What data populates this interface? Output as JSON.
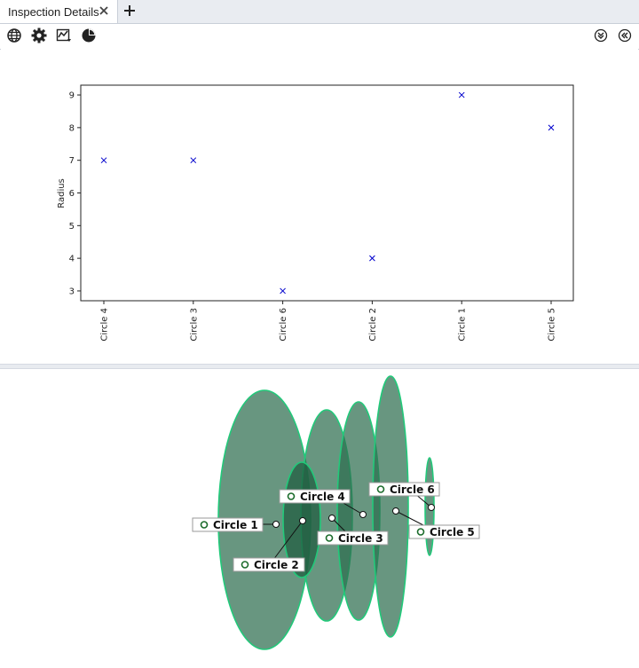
{
  "tab": {
    "title": "Inspection Details"
  },
  "toolbar": {
    "left_icons": [
      "globe-icon",
      "gear-icon",
      "line-chart-icon",
      "pie-chart-icon"
    ],
    "right_icons": [
      "collapse-down-icon",
      "collapse-left-icon"
    ]
  },
  "chart_data": {
    "type": "scatter",
    "categories": [
      "Circle 4",
      "Circle 3",
      "Circle 6",
      "Circle 2",
      "Circle 1",
      "Circle 5"
    ],
    "values": [
      7,
      7,
      3,
      4,
      9,
      8
    ],
    "ylabel": "Radius",
    "ylim": [
      2.7,
      9.3
    ],
    "yticks": [
      3,
      4,
      5,
      6,
      7,
      8,
      9
    ],
    "marker": "x",
    "marker_color": "#0000cc",
    "grid": false
  },
  "viewer": {
    "labels": [
      "Circle 1",
      "Circle 2",
      "Circle 3",
      "Circle 4",
      "Circle 5",
      "Circle 6"
    ],
    "fill_color": "#2e6e4f",
    "outline_color": "#22c97a"
  }
}
